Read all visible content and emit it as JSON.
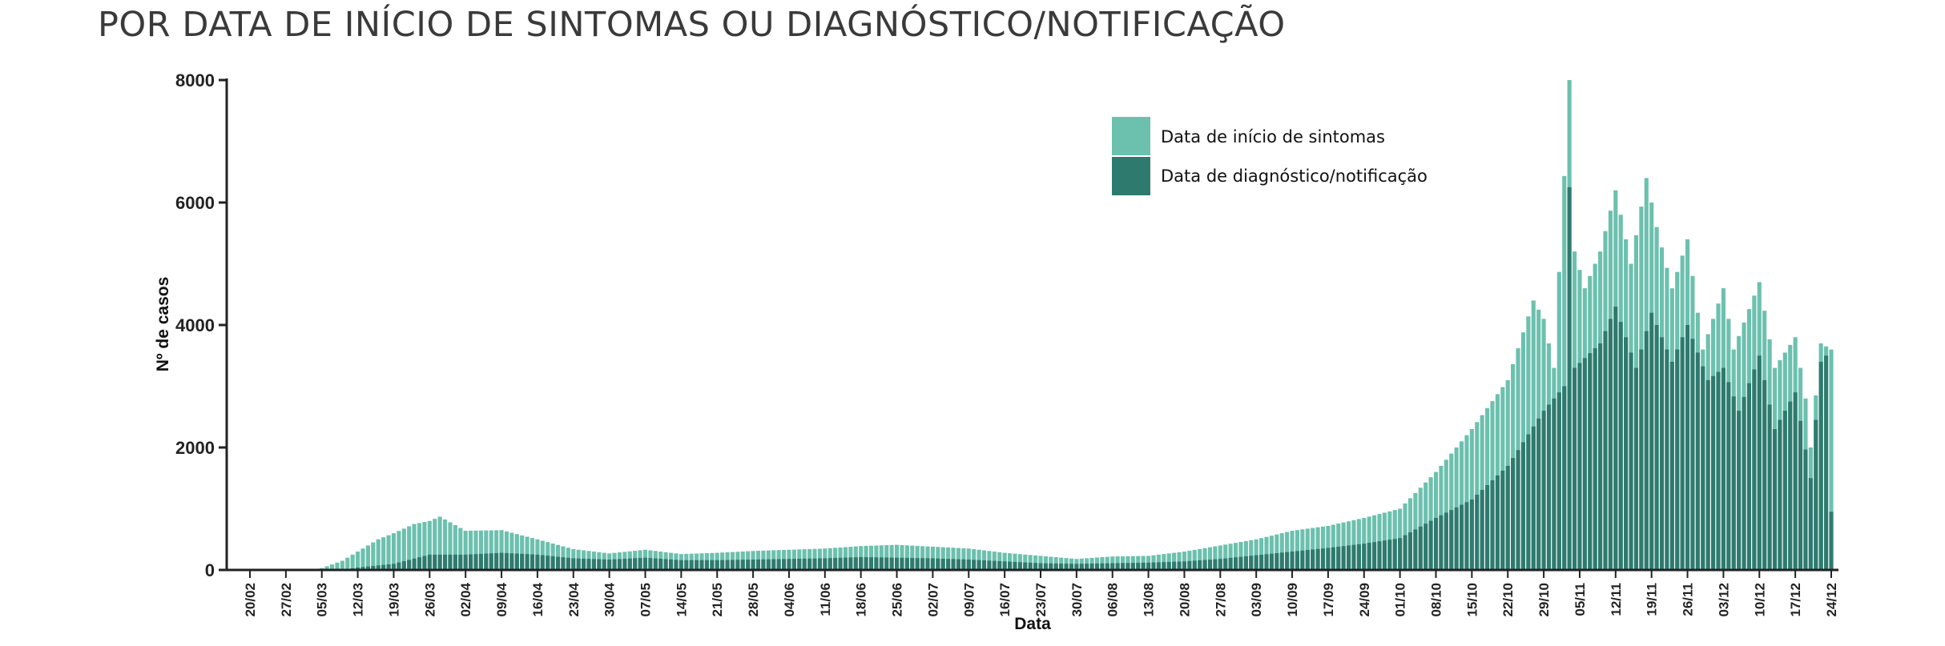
{
  "title": "POR DATA DE INÍCIO DE SINTOMAS OU DIAGNÓSTICO/NOTIFICAÇÃO",
  "colors": {
    "onset": "#6cc0ae",
    "diagnosis": "#2f7a6e",
    "axis": "#222222"
  },
  "chart_data": {
    "type": "bar",
    "stacking": "overlapping",
    "title": "POR DATA DE INÍCIO DE SINTOMAS OU DIAGNÓSTICO/NOTIFICAÇÃO",
    "xlabel": "Data",
    "ylabel": "Nº de casos",
    "ylim": [
      0,
      8000
    ],
    "yticks": [
      0,
      2000,
      4000,
      6000,
      8000
    ],
    "x_start": "20/02",
    "x_end": "24/12",
    "xticks": [
      "20/02",
      "27/02",
      "05/03",
      "12/03",
      "19/03",
      "26/03",
      "02/04",
      "09/04",
      "16/04",
      "23/04",
      "30/04",
      "07/05",
      "14/05",
      "21/05",
      "28/05",
      "04/06",
      "11/06",
      "18/06",
      "25/06",
      "02/07",
      "09/07",
      "16/07",
      "23/07",
      "30/07",
      "06/08",
      "13/08",
      "20/08",
      "27/08",
      "03/09",
      "10/09",
      "17/09",
      "24/09",
      "01/10",
      "08/10",
      "15/10",
      "22/10",
      "29/10",
      "05/11",
      "12/11",
      "19/11",
      "26/11",
      "03/12",
      "10/12",
      "17/12",
      "24/12"
    ],
    "grid": false,
    "legend_position": "top-right",
    "series": [
      {
        "name": "Data de início de sintomas",
        "color": "#6cc0ae",
        "anchors": [
          [
            "20/02",
            0
          ],
          [
            "02/03",
            0
          ],
          [
            "05/03",
            30
          ],
          [
            "09/03",
            150
          ],
          [
            "12/03",
            300
          ],
          [
            "16/03",
            500
          ],
          [
            "19/03",
            600
          ],
          [
            "23/03",
            750
          ],
          [
            "26/03",
            800
          ],
          [
            "28/03",
            870
          ],
          [
            "02/04",
            640
          ],
          [
            "09/04",
            650
          ],
          [
            "16/04",
            500
          ],
          [
            "23/04",
            340
          ],
          [
            "30/04",
            270
          ],
          [
            "07/05",
            330
          ],
          [
            "14/05",
            260
          ],
          [
            "21/05",
            280
          ],
          [
            "28/05",
            310
          ],
          [
            "04/06",
            330
          ],
          [
            "11/06",
            350
          ],
          [
            "18/06",
            390
          ],
          [
            "25/06",
            410
          ],
          [
            "02/07",
            380
          ],
          [
            "09/07",
            350
          ],
          [
            "16/07",
            280
          ],
          [
            "23/07",
            230
          ],
          [
            "30/07",
            180
          ],
          [
            "06/08",
            220
          ],
          [
            "13/08",
            230
          ],
          [
            "20/08",
            300
          ],
          [
            "27/08",
            400
          ],
          [
            "03/09",
            500
          ],
          [
            "10/09",
            640
          ],
          [
            "17/09",
            720
          ],
          [
            "24/09",
            850
          ],
          [
            "01/10",
            1000
          ],
          [
            "08/10",
            1600
          ],
          [
            "15/10",
            2300
          ],
          [
            "22/10",
            3100
          ],
          [
            "27/10",
            4400
          ],
          [
            "29/10",
            4100
          ],
          [
            "31/10",
            3300
          ],
          [
            "03/11",
            8000
          ],
          [
            "04/11",
            5200
          ],
          [
            "06/11",
            4600
          ],
          [
            "09/11",
            5200
          ],
          [
            "12/11",
            6200
          ],
          [
            "15/11",
            5000
          ],
          [
            "18/11",
            6400
          ],
          [
            "20/11",
            5600
          ],
          [
            "23/11",
            4600
          ],
          [
            "26/11",
            5400
          ],
          [
            "29/11",
            3600
          ],
          [
            "03/12",
            4600
          ],
          [
            "05/12",
            3600
          ],
          [
            "10/12",
            4700
          ],
          [
            "13/12",
            3300
          ],
          [
            "17/12",
            3800
          ],
          [
            "19/12",
            2800
          ],
          [
            "20/12",
            2000
          ],
          [
            "22/12",
            3700
          ],
          [
            "24/12",
            3600
          ]
        ]
      },
      {
        "name": "Data de diagnóstico/notificação",
        "color": "#2f7a6e",
        "anchors": [
          [
            "20/02",
            0
          ],
          [
            "09/03",
            0
          ],
          [
            "12/03",
            40
          ],
          [
            "19/03",
            100
          ],
          [
            "26/03",
            250
          ],
          [
            "02/04",
            250
          ],
          [
            "09/04",
            280
          ],
          [
            "16/04",
            250
          ],
          [
            "23/04",
            190
          ],
          [
            "30/04",
            170
          ],
          [
            "07/05",
            200
          ],
          [
            "14/05",
            160
          ],
          [
            "21/05",
            160
          ],
          [
            "28/05",
            170
          ],
          [
            "04/06",
            180
          ],
          [
            "11/06",
            190
          ],
          [
            "18/06",
            210
          ],
          [
            "25/06",
            200
          ],
          [
            "02/07",
            190
          ],
          [
            "09/07",
            170
          ],
          [
            "16/07",
            140
          ],
          [
            "23/07",
            110
          ],
          [
            "30/07",
            100
          ],
          [
            "06/08",
            110
          ],
          [
            "13/08",
            120
          ],
          [
            "20/08",
            140
          ],
          [
            "27/08",
            180
          ],
          [
            "03/09",
            240
          ],
          [
            "10/09",
            300
          ],
          [
            "17/09",
            360
          ],
          [
            "24/09",
            430
          ],
          [
            "01/10",
            520
          ],
          [
            "08/10",
            850
          ],
          [
            "15/10",
            1150
          ],
          [
            "22/10",
            1700
          ],
          [
            "29/10",
            2600
          ],
          [
            "02/11",
            3000
          ],
          [
            "03/11",
            6250
          ],
          [
            "04/11",
            3300
          ],
          [
            "09/11",
            3700
          ],
          [
            "12/11",
            4300
          ],
          [
            "16/11",
            3300
          ],
          [
            "19/11",
            4200
          ],
          [
            "23/11",
            3400
          ],
          [
            "26/11",
            4000
          ],
          [
            "30/11",
            3100
          ],
          [
            "03/12",
            3300
          ],
          [
            "06/12",
            2600
          ],
          [
            "10/12",
            3500
          ],
          [
            "13/12",
            2300
          ],
          [
            "17/12",
            2900
          ],
          [
            "20/12",
            1500
          ],
          [
            "22/12",
            3400
          ],
          [
            "23/12",
            3500
          ],
          [
            "24/12",
            950
          ]
        ]
      }
    ]
  }
}
